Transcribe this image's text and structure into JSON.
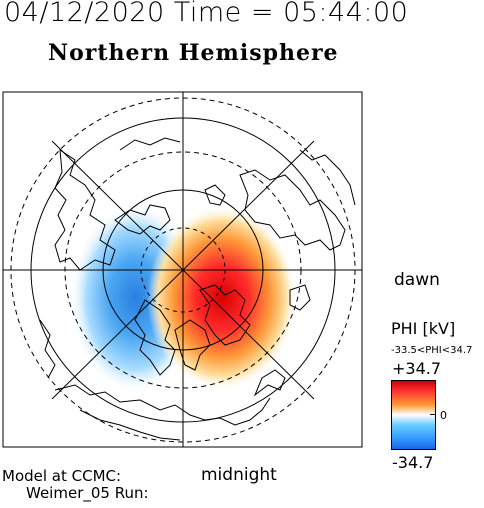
{
  "header": {
    "date_time": "04/12/2020 Time = 05:44:00",
    "title": "Northern Hemisphere"
  },
  "map": {
    "orientation_labels": {
      "right": "dawn",
      "bottom": "midnight"
    },
    "colors": {
      "positive": "#e01818",
      "negative": "#2f8fe8",
      "background": "#ffffff"
    }
  },
  "colorbar": {
    "title": "PHI [kV]",
    "range_text": "-33.5<PHI<34.7",
    "max_label": "+34.7",
    "zero_label": "0",
    "min_label": "-34.7"
  },
  "footer": {
    "model_label": "Model at CCMC:",
    "run_label": "Weimer_05 Run:"
  }
}
